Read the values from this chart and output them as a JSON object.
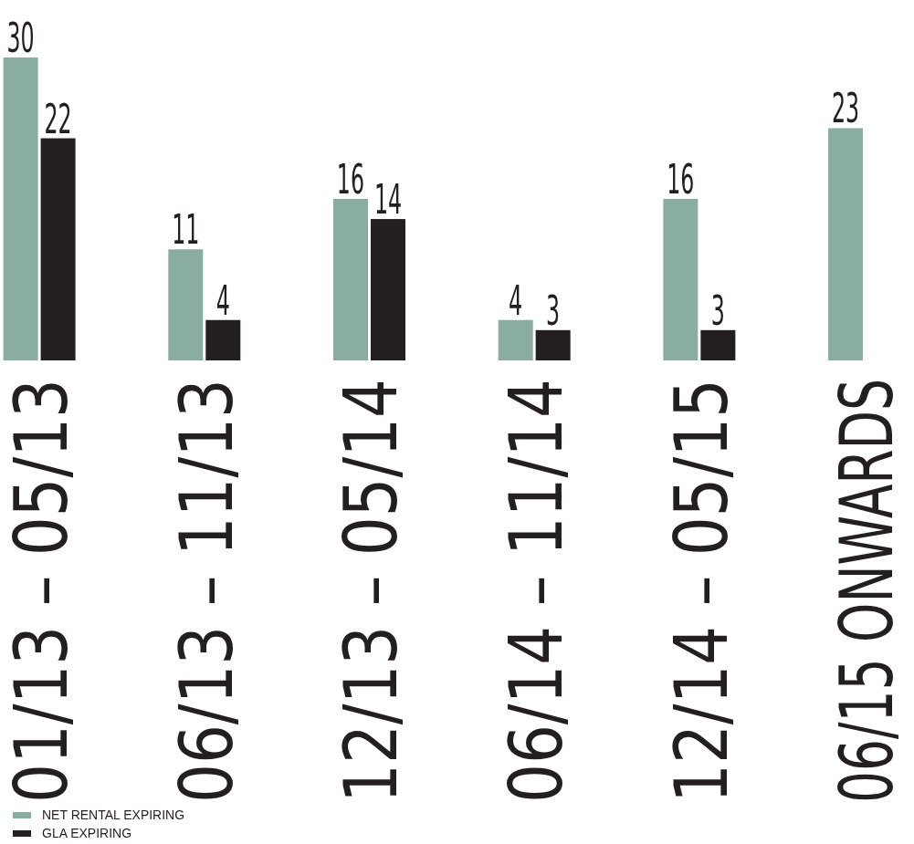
{
  "chart_data": {
    "type": "bar",
    "categories": [
      "01/13 – 05/13",
      "06/13 – 11/13",
      "12/13 – 05/14",
      "06/14 – 11/14",
      "12/14 – 05/15",
      "06/15 ONWARDS"
    ],
    "series": [
      {
        "name": "NET RENTAL EXPIRING",
        "color": "#89ada1",
        "values": [
          30,
          11,
          16,
          4,
          16,
          23
        ]
      },
      {
        "name": "GLA EXPIRING",
        "color": "#231f20",
        "values": [
          22,
          4,
          14,
          3,
          3,
          null
        ]
      }
    ],
    "data_labels": true,
    "legend": "bottom left"
  }
}
